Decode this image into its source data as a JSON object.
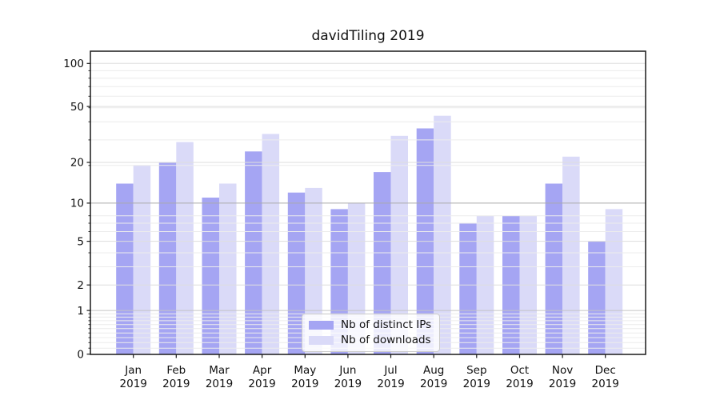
{
  "chart_data": {
    "type": "bar",
    "title": "davidTiling 2019",
    "x_tick_months": [
      "Jan",
      "Feb",
      "Mar",
      "Apr",
      "May",
      "Jun",
      "Jul",
      "Aug",
      "Sep",
      "Oct",
      "Nov",
      "Dec"
    ],
    "x_tick_year": "2019",
    "categories": [
      "Jan 2019",
      "Feb 2019",
      "Mar 2019",
      "Apr 2019",
      "May 2019",
      "Jun 2019",
      "Jul 2019",
      "Aug 2019",
      "Sep 2019",
      "Oct 2019",
      "Nov 2019",
      "Dec 2019"
    ],
    "series": [
      {
        "name": "Nb of distinct IPs",
        "color": "#a5a5f3",
        "values": [
          14,
          20,
          11,
          24,
          12,
          9,
          17,
          35,
          7,
          8,
          14,
          5
        ]
      },
      {
        "name": "Nb of downloads",
        "color": "#dadaf8",
        "values": [
          19,
          28,
          14,
          32,
          13,
          10,
          31,
          43,
          8,
          8,
          22,
          9
        ]
      }
    ],
    "yscale": "log1p",
    "ylim": [
      0,
      121.7
    ],
    "yticks_major": [
      0,
      1,
      2,
      5,
      10,
      20,
      50,
      100
    ],
    "yticks_minor": [
      0.1,
      0.2,
      0.3,
      0.4,
      0.5,
      0.6,
      0.7,
      0.8,
      0.9,
      3,
      4,
      6,
      7,
      8,
      19,
      29,
      39,
      49,
      59,
      69,
      79,
      89
    ],
    "grid": true,
    "grid_emphasis": [
      1,
      10
    ],
    "legend_position": "lower center"
  },
  "colors": {
    "background": "#ffffff",
    "spine": "#1a1a1a",
    "tick_text": "#1a1a1a",
    "grid_major": "#dedede",
    "grid_minor": "#ececec",
    "grid_emphasis_1": "#c4c4c4",
    "grid_emphasis_10": "#aaaaaa"
  }
}
